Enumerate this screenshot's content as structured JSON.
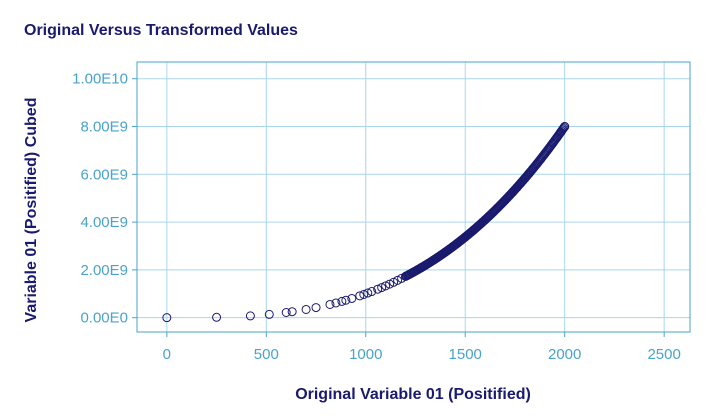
{
  "chart_data": {
    "type": "scatter",
    "title": "Original Versus Transformed Values",
    "xlabel": "Original Variable 01 (Positified)",
    "ylabel": "Variable 01 (Positified) Cubed",
    "xlim": [
      -150,
      2630
    ],
    "ylim": [
      -600000000,
      10700000000
    ],
    "xticks": [
      0,
      500,
      1000,
      1500,
      2000,
      2500
    ],
    "xtick_labels": [
      "0",
      "500",
      "1000",
      "1500",
      "2000",
      "2500"
    ],
    "yticks": [
      0,
      2000000000,
      4000000000,
      6000000000,
      8000000000,
      10000000000
    ],
    "ytick_labels": [
      "0.00E0",
      "2.00E9",
      "4.00E9",
      "6.00E9",
      "8.00E9",
      "1.00E10"
    ],
    "grid": true,
    "series": [
      {
        "name": "Variable 01 (Positified) Cubed",
        "transform": "y = x^3",
        "x": [
          0,
          250,
          420,
          515,
          600,
          630,
          700,
          750,
          820,
          850,
          880,
          900,
          930,
          970,
          990,
          1010,
          1030,
          1060,
          1080,
          1100,
          1120,
          1140,
          1160,
          1180,
          1200,
          1220,
          1240,
          1260,
          1280,
          1300,
          1320,
          1340,
          1360,
          1380,
          1400,
          1420,
          1440,
          1460,
          1480,
          1500,
          1520,
          1540,
          1560,
          1580,
          1600,
          1620,
          1640,
          1660,
          1680,
          1700,
          1720,
          1740,
          1760,
          1780,
          1800,
          1820,
          1840,
          1860,
          1880,
          1900,
          1920,
          1940,
          1960,
          1980,
          2000
        ],
        "colors": {
          "marker": "#1a1a6e"
        }
      }
    ]
  }
}
